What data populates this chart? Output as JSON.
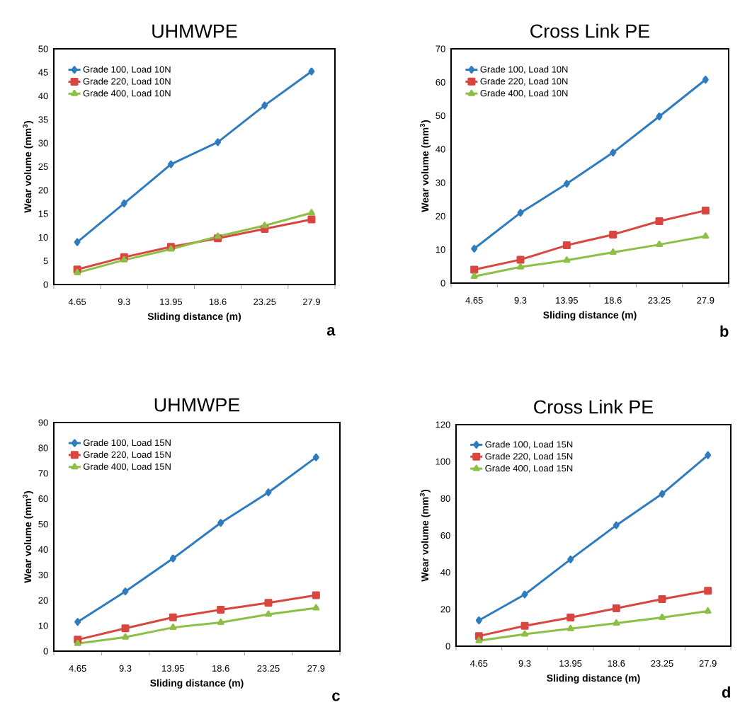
{
  "chart_data": [
    {
      "type": "line",
      "title": "UHMWPE",
      "xlabel": "Sliding distance (m)",
      "ylabel": "Wear volume (mm$^{3}$)",
      "categories": [
        "4.65",
        "9.3",
        "13.95",
        "18.6",
        "23.25",
        "27.9"
      ],
      "ylim": [
        0,
        50
      ],
      "yticks": [
        0,
        5,
        10,
        15,
        20,
        25,
        30,
        35,
        40,
        45,
        50
      ],
      "legend": "top left",
      "annotations": [
        "a"
      ],
      "series": [
        {
          "name": "Grade 100, Load 10N",
          "color": "#2e7bbf",
          "marker": "diamond",
          "values": [
            9,
            17.2,
            25.5,
            30.2,
            38,
            45.2
          ]
        },
        {
          "name": "Grade 220, Load 10N",
          "color": "#d9463f",
          "marker": "square",
          "values": [
            3.2,
            5.8,
            8,
            9.8,
            11.8,
            13.8
          ]
        },
        {
          "name": "Grade 400, Load 10N",
          "color": "#8cbf45",
          "marker": "triangle",
          "values": [
            2.5,
            5.2,
            7.5,
            10.2,
            12.5,
            15.2
          ]
        }
      ]
    },
    {
      "type": "line",
      "title": "Cross Link PE",
      "xlabel": "Sliding distance (m)",
      "ylabel": "Wear volume (mm$^{3}$)",
      "categories": [
        "4.65",
        "9.3",
        "13.95",
        "18.6",
        "23.25",
        "27.9"
      ],
      "ylim": [
        0,
        70
      ],
      "yticks": [
        0,
        10,
        20,
        30,
        40,
        50,
        60,
        70
      ],
      "legend": "top left",
      "annotations": [
        "b"
      ],
      "series": [
        {
          "name": "Grade 100, Load 10N",
          "color": "#2e7bbf",
          "marker": "diamond",
          "values": [
            10.3,
            21,
            29.7,
            39,
            49.8,
            60.8
          ]
        },
        {
          "name": "Grade 220, Load 10N",
          "color": "#d9463f",
          "marker": "square",
          "values": [
            4,
            7,
            11.3,
            14.5,
            18.5,
            21.7
          ]
        },
        {
          "name": "Grade 400, Load 10N",
          "color": "#8cbf45",
          "marker": "triangle",
          "values": [
            2,
            4.8,
            6.8,
            9.2,
            11.5,
            14
          ]
        }
      ]
    },
    {
      "type": "line",
      "title": "UHMWPE",
      "xlabel": "Sliding distance (m)",
      "ylabel": "Wear volume (mm$^{3}$)",
      "categories": [
        "4.65",
        "9.3",
        "13.95",
        "18.6",
        "23.25",
        "27.9"
      ],
      "ylim": [
        0,
        90
      ],
      "yticks": [
        0,
        10,
        20,
        30,
        40,
        50,
        60,
        70,
        80,
        90
      ],
      "legend": "top left",
      "annotations": [
        "c"
      ],
      "series": [
        {
          "name": "Grade 100, Load 15N",
          "color": "#2e7bbf",
          "marker": "diamond",
          "values": [
            11.5,
            23.5,
            36.5,
            50.5,
            62.5,
            76.3
          ]
        },
        {
          "name": "Grade 220, Load 15N",
          "color": "#d9463f",
          "marker": "square",
          "values": [
            4.5,
            9,
            13.3,
            16.3,
            19,
            22
          ]
        },
        {
          "name": "Grade 400, Load 15N",
          "color": "#8cbf45",
          "marker": "triangle",
          "values": [
            3,
            5.5,
            9.3,
            11.3,
            14.5,
            17
          ]
        }
      ]
    },
    {
      "type": "line",
      "title": "Cross Link PE",
      "xlabel": "Sliding distance (m)",
      "ylabel": "Wear volume (mm$^{3}$)",
      "categories": [
        "4.65",
        "9.3",
        "13.95",
        "18.6",
        "23.25",
        "27.9"
      ],
      "ylim": [
        0,
        120
      ],
      "yticks": [
        0,
        20,
        40,
        60,
        80,
        100,
        120
      ],
      "legend": "top left",
      "annotations": [
        "d"
      ],
      "series": [
        {
          "name": "Grade 100, Load 15N",
          "color": "#2e7bbf",
          "marker": "diamond",
          "values": [
            14,
            28,
            47,
            65.5,
            82.5,
            103.5
          ]
        },
        {
          "name": "Grade 220, Load 15N",
          "color": "#d9463f",
          "marker": "square",
          "values": [
            5.5,
            11,
            15.5,
            20.5,
            25.5,
            30
          ]
        },
        {
          "name": "Grade 400, Load 15N",
          "color": "#8cbf45",
          "marker": "triangle",
          "values": [
            3,
            6.5,
            9.5,
            12.5,
            15.5,
            19
          ]
        }
      ]
    }
  ]
}
